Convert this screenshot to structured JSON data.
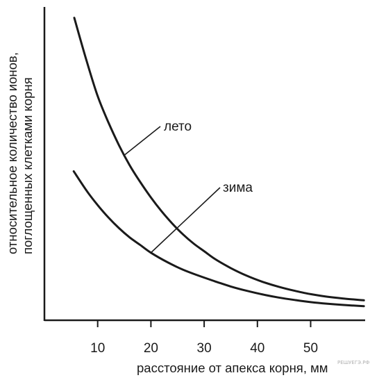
{
  "chart_data": {
    "type": "line",
    "title": "",
    "xlabel": "расстояние от апекса корня, мм",
    "ylabel_lines": [
      "относительное количество ионов,",
      "поглощенных клетками корня"
    ],
    "x_ticks": [
      "10",
      "20",
      "30",
      "40",
      "50"
    ],
    "xlim": [
      0,
      60
    ],
    "ylim": [
      0,
      100
    ],
    "grid": false,
    "legend": "none",
    "series": [
      {
        "name": "лето",
        "x": [
          5.6,
          8,
          10,
          12,
          14,
          16,
          18,
          20,
          22,
          24,
          26,
          28,
          30,
          32,
          35,
          38,
          41,
          44,
          47,
          50,
          53,
          56,
          60
        ],
        "y": [
          98.5,
          84,
          73,
          64.5,
          57,
          50.5,
          45,
          40,
          35.5,
          31.5,
          28,
          25,
          22.5,
          20,
          17,
          14.5,
          12.5,
          10.9,
          9.6,
          8.5,
          7.7,
          7.1,
          6.5
        ]
      },
      {
        "name": "зима",
        "x": [
          5.5,
          8,
          10,
          12,
          14,
          16,
          18,
          20,
          23,
          26,
          29,
          32,
          35,
          38,
          41,
          44,
          47,
          50,
          53,
          56,
          60
        ],
        "y": [
          48.5,
          42,
          37.5,
          33.5,
          30,
          27,
          24.5,
          22,
          19,
          16.5,
          14.5,
          12.7,
          11,
          9.6,
          8.4,
          7.4,
          6.6,
          5.9,
          5.4,
          5.0,
          4.6
        ]
      }
    ],
    "annotations": [
      {
        "text": "лето",
        "series": "лето",
        "at_x": 15
      },
      {
        "text": "зима",
        "series": "зима",
        "at_x": 20
      }
    ]
  },
  "watermark": "РЕШУЕГЭ.РФ"
}
